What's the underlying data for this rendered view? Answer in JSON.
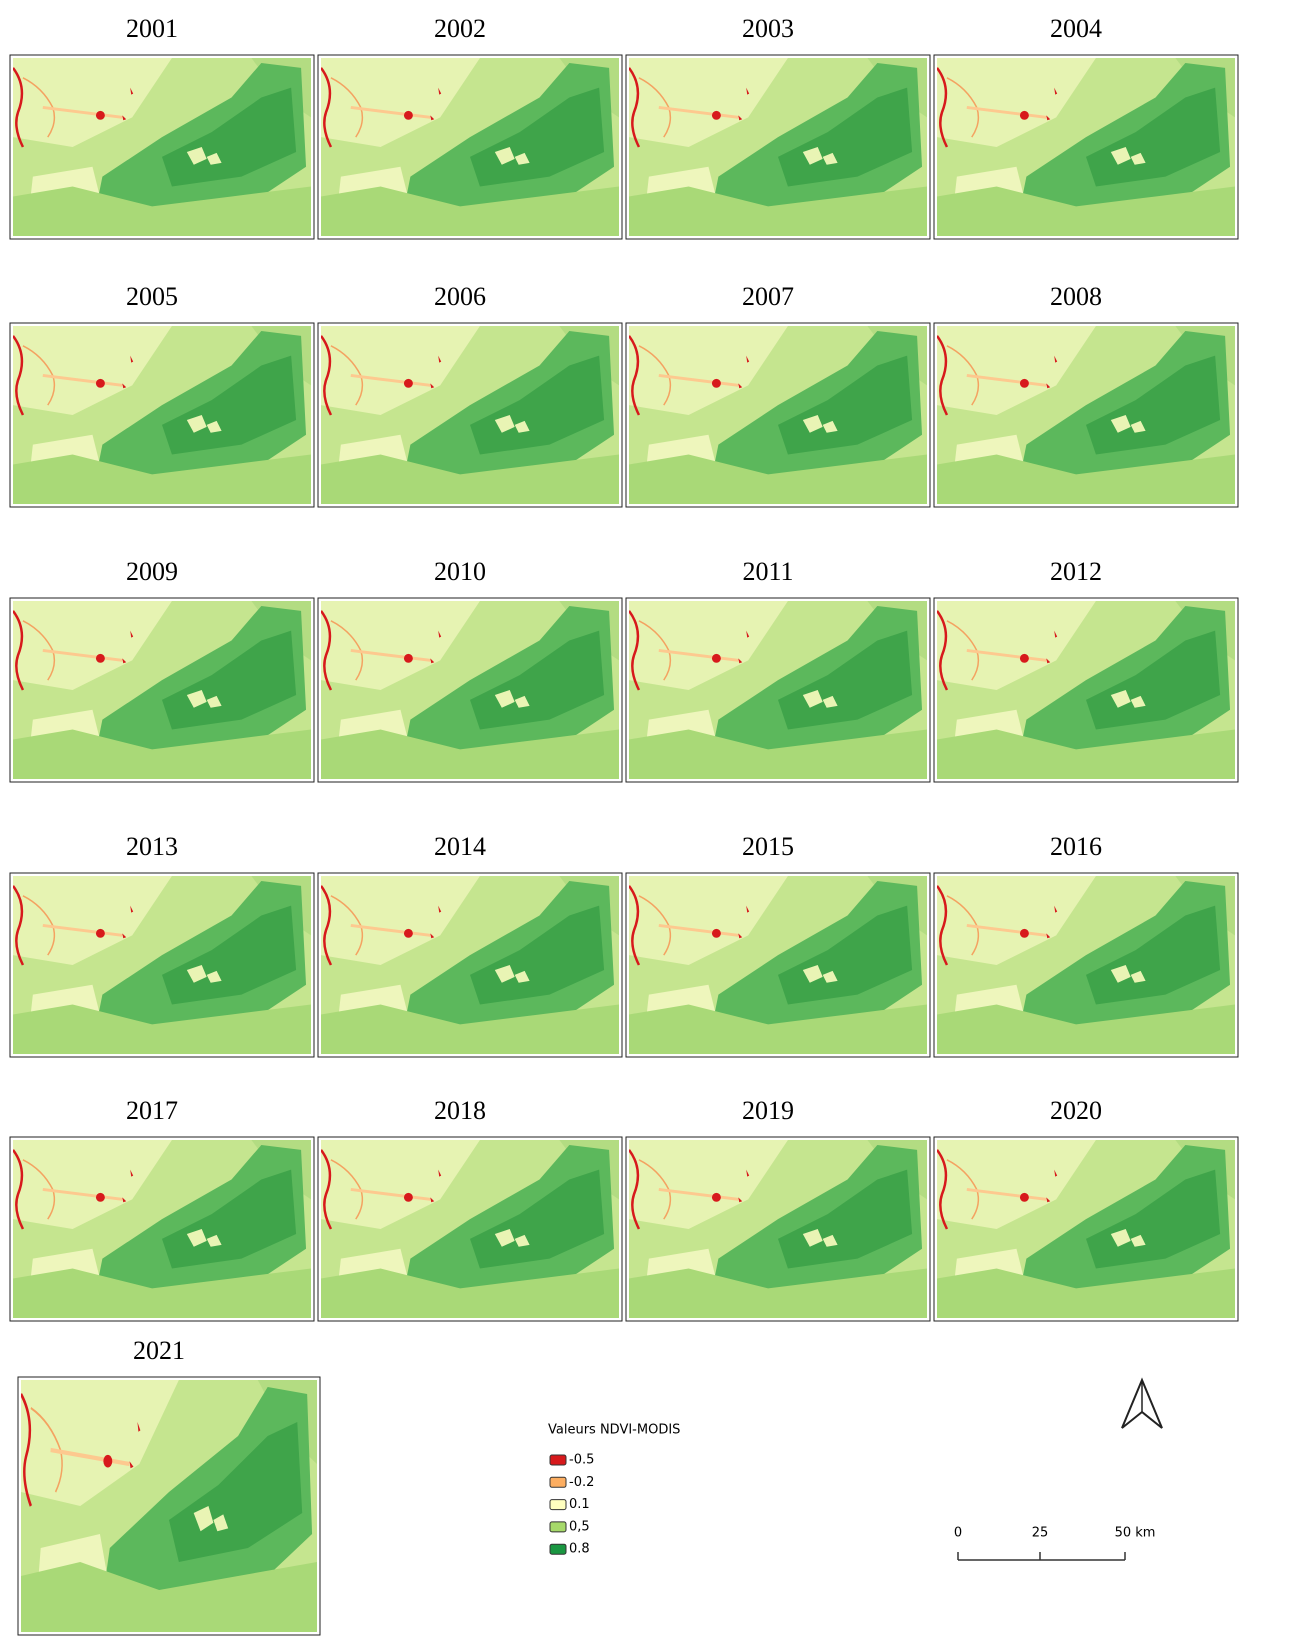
{
  "panels": [
    {
      "year": "2001"
    },
    {
      "year": "2002"
    },
    {
      "year": "2003"
    },
    {
      "year": "2004"
    },
    {
      "year": "2005"
    },
    {
      "year": "2006"
    },
    {
      "year": "2007"
    },
    {
      "year": "2008"
    },
    {
      "year": "2009"
    },
    {
      "year": "2010"
    },
    {
      "year": "2011"
    },
    {
      "year": "2012"
    },
    {
      "year": "2013"
    },
    {
      "year": "2014"
    },
    {
      "year": "2015"
    },
    {
      "year": "2016"
    },
    {
      "year": "2017"
    },
    {
      "year": "2018"
    },
    {
      "year": "2019"
    },
    {
      "year": "2020"
    },
    {
      "year": "2021"
    }
  ],
  "legend": {
    "title": "Valeurs NDVI-MODIS",
    "items": [
      {
        "label": "-0.5",
        "color": "#d7191c"
      },
      {
        "label": "-0.2",
        "color": "#fdae61"
      },
      {
        "label": "0.1",
        "color": "#ffffbf"
      },
      {
        "label": "0,5",
        "color": "#a6d96a"
      },
      {
        "label": "0.8",
        "color": "#1a9641"
      }
    ]
  },
  "scale_bar": {
    "labels": [
      "0",
      "25",
      "50 km"
    ]
  }
}
